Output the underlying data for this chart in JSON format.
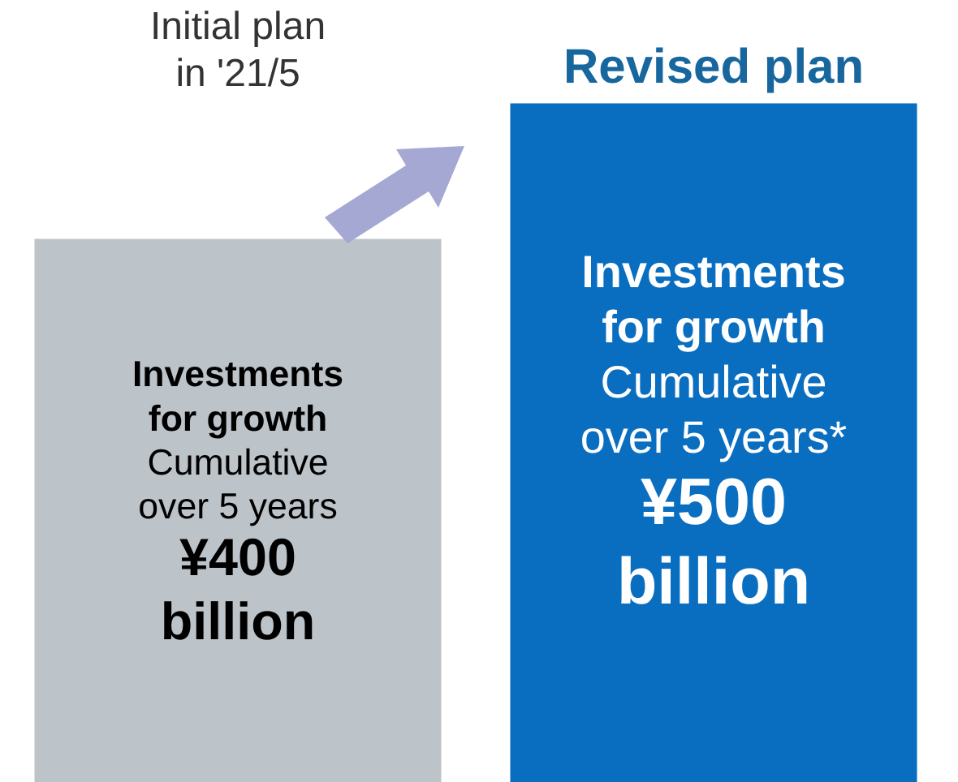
{
  "chart_data": {
    "type": "bar",
    "categories": [
      "Initial plan\nin '21/5",
      "Revised plan"
    ],
    "values": [
      400,
      500
    ],
    "colors": [
      "#bcc3c9",
      "#0a6ec0"
    ],
    "value_labels": [
      "Investments\nfor growth\nCumulative\nover 5 years\n¥400\nbillion",
      "Investments\nfor growth\nCumulative\nover 5 years*\n¥500\nbillion"
    ]
  }
}
